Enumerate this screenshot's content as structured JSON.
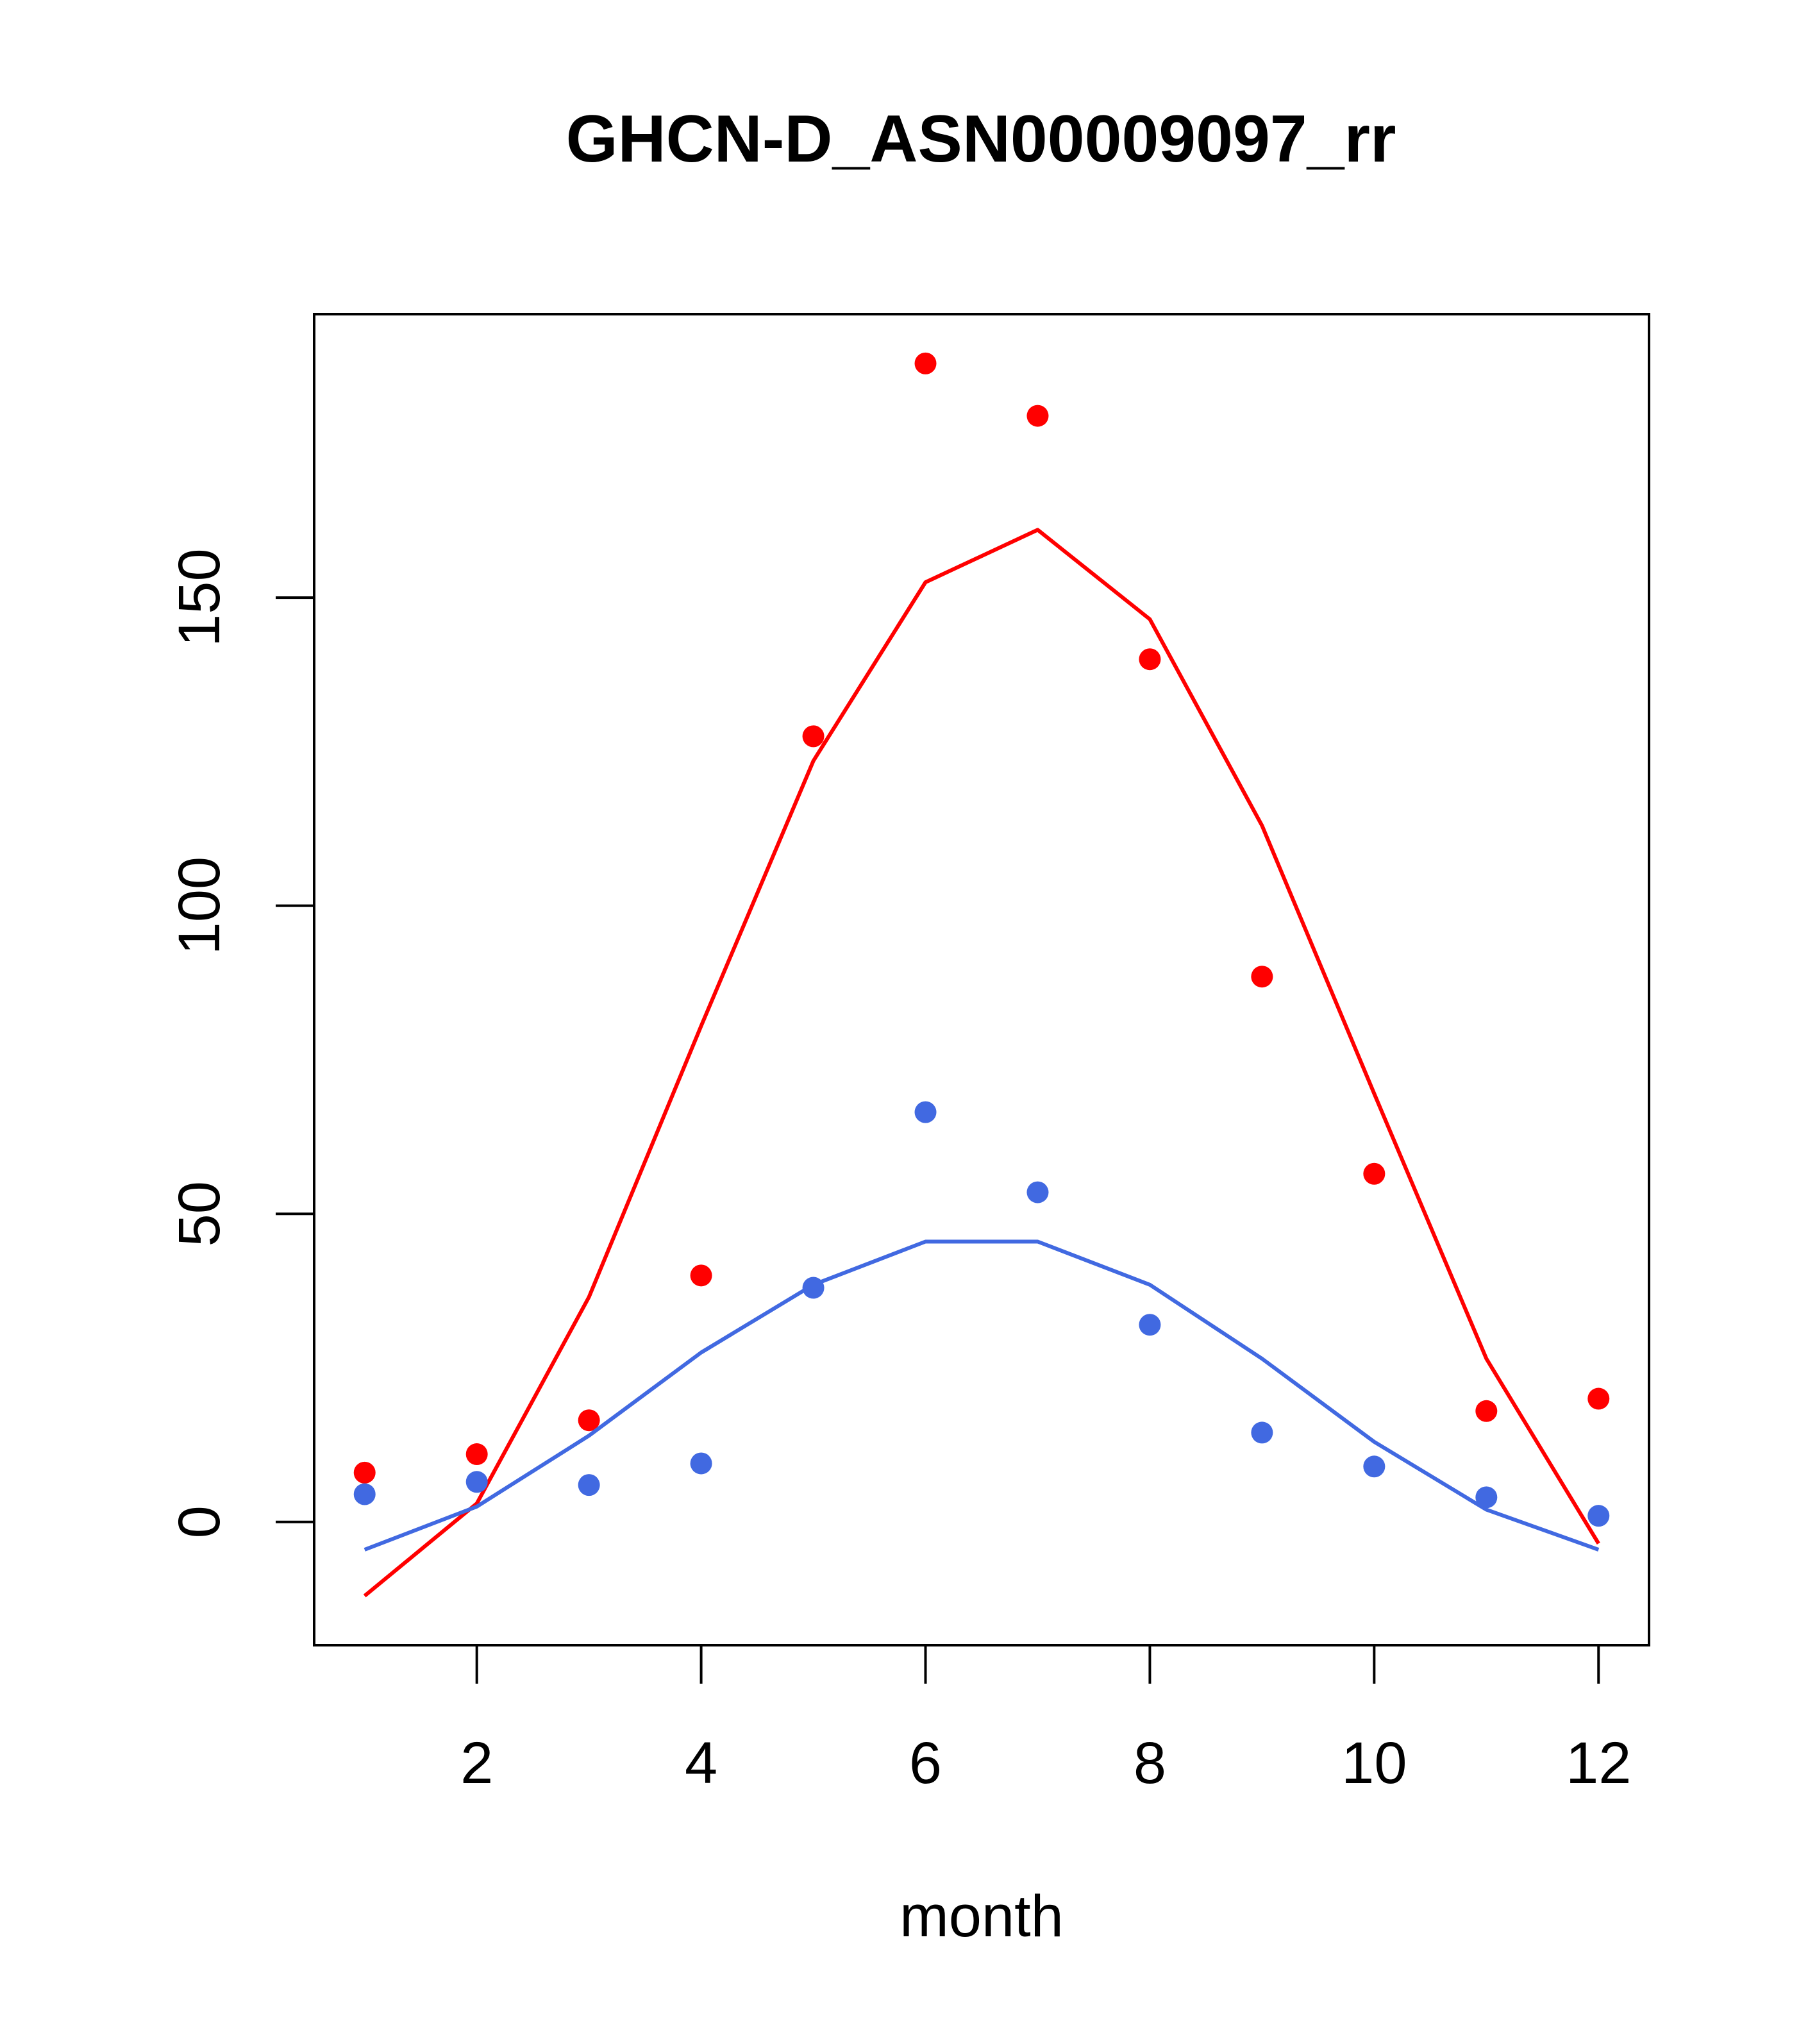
{
  "chart_data": {
    "type": "scatter",
    "title": "GHCN-D_ASN00009097_rr",
    "xlabel": "month",
    "ylabel": "",
    "xlim": [
      0.55,
      12.45
    ],
    "ylim": [
      -20,
      196
    ],
    "x_ticks": [
      2,
      4,
      6,
      8,
      10,
      12
    ],
    "y_ticks": [
      0,
      50,
      100,
      150
    ],
    "grid": false,
    "series": [
      {
        "color": "#ff0000",
        "points": [
          {
            "x": 1,
            "y": 8
          },
          {
            "x": 2,
            "y": 11
          },
          {
            "x": 3,
            "y": 16.5
          },
          {
            "x": 4,
            "y": 40
          },
          {
            "x": 5,
            "y": 127.5
          },
          {
            "x": 6,
            "y": 188
          },
          {
            "x": 7,
            "y": 179.5
          },
          {
            "x": 8,
            "y": 140
          },
          {
            "x": 9,
            "y": 88.5
          },
          {
            "x": 10,
            "y": 56.5
          },
          {
            "x": 11,
            "y": 18
          },
          {
            "x": 12,
            "y": 20
          }
        ],
        "fit": [
          {
            "x": 1,
            "y": -12
          },
          {
            "x": 2,
            "y": 3
          },
          {
            "x": 3,
            "y": 36.5
          },
          {
            "x": 4,
            "y": 80.5
          },
          {
            "x": 5,
            "y": 123.5
          },
          {
            "x": 6,
            "y": 152.5
          },
          {
            "x": 7,
            "y": 161
          },
          {
            "x": 8,
            "y": 146.5
          },
          {
            "x": 9,
            "y": 113
          },
          {
            "x": 10,
            "y": 69.5
          },
          {
            "x": 11,
            "y": 26.5
          },
          {
            "x": 12,
            "y": -3.5
          }
        ]
      },
      {
        "color": "#4169e1",
        "points": [
          {
            "x": 1,
            "y": 4.5
          },
          {
            "x": 2,
            "y": 6.5
          },
          {
            "x": 3,
            "y": 6
          },
          {
            "x": 4,
            "y": 9.5
          },
          {
            "x": 5,
            "y": 38
          },
          {
            "x": 6,
            "y": 66.5
          },
          {
            "x": 7,
            "y": 53.5
          },
          {
            "x": 8,
            "y": 32
          },
          {
            "x": 9,
            "y": 14.5
          },
          {
            "x": 10,
            "y": 9
          },
          {
            "x": 11,
            "y": 4
          },
          {
            "x": 12,
            "y": 1
          }
        ],
        "fit": [
          {
            "x": 1,
            "y": -4.5
          },
          {
            "x": 2,
            "y": 2.5
          },
          {
            "x": 3,
            "y": 14
          },
          {
            "x": 4,
            "y": 27.5
          },
          {
            "x": 5,
            "y": 38.5
          },
          {
            "x": 6,
            "y": 45.5
          },
          {
            "x": 7,
            "y": 45.5
          },
          {
            "x": 8,
            "y": 38.5
          },
          {
            "x": 9,
            "y": 26.5
          },
          {
            "x": 10,
            "y": 13
          },
          {
            "x": 11,
            "y": 2
          },
          {
            "x": 12,
            "y": -4.5
          }
        ]
      }
    ]
  }
}
